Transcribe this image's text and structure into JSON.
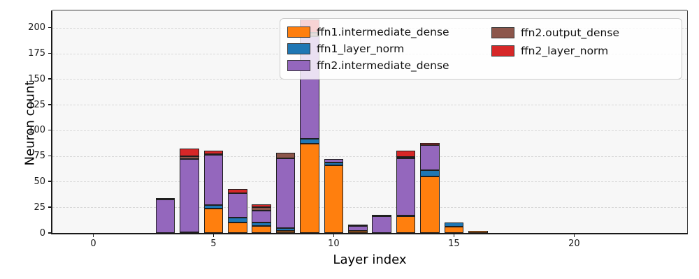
{
  "chart_data": {
    "type": "bar",
    "stacked": true,
    "title": "",
    "xlabel": "Layer index",
    "ylabel": "Neuron count",
    "xlim": [
      -1.7,
      24.7
    ],
    "ylim": [
      0,
      217
    ],
    "xticks": [
      0,
      5,
      10,
      15,
      20
    ],
    "yticks": [
      0,
      25,
      50,
      75,
      100,
      125,
      150,
      175,
      200
    ],
    "grid": "horizontal dashed, axis below bars",
    "plot_background": "#f7f7f7",
    "bar_relative_width": 0.8,
    "bar_edge_color": "#1f1f1f",
    "categories": [
      0,
      1,
      2,
      3,
      4,
      5,
      6,
      7,
      8,
      9,
      10,
      11,
      12,
      13,
      14,
      15,
      16,
      17,
      18,
      19,
      20,
      21,
      22,
      23
    ],
    "series": [
      {
        "name": "ffn1.intermediate_dense",
        "color": "#ff7f0e",
        "values": [
          0,
          0,
          0,
          0,
          1,
          24,
          10,
          7,
          2,
          87,
          66,
          2,
          0,
          16,
          55,
          6,
          2,
          0,
          0,
          0,
          0,
          0,
          0,
          0
        ]
      },
      {
        "name": "ffn1_layer_norm",
        "color": "#1f77b4",
        "values": [
          0,
          0,
          0,
          0,
          0,
          3,
          5,
          3,
          3,
          5,
          3,
          0,
          0,
          1,
          6,
          4,
          0,
          0,
          0,
          0,
          0,
          0,
          0,
          0
        ]
      },
      {
        "name": "ffn2.intermediate_dense",
        "color": "#9467bd",
        "values": [
          0,
          0,
          0,
          33,
          71,
          49,
          24,
          12,
          68,
          100,
          3,
          5,
          16,
          56,
          25,
          0,
          0,
          0,
          0,
          0,
          0,
          0,
          0,
          0
        ]
      },
      {
        "name": "ffn2.output_dense",
        "color": "#8c564b",
        "values": [
          0,
          0,
          0,
          1,
          3,
          1,
          0,
          3,
          5,
          3,
          0,
          1,
          0,
          1,
          0,
          0,
          0,
          0,
          0,
          0,
          0,
          0,
          0,
          0
        ]
      },
      {
        "name": "ffn2_layer_norm",
        "color": "#d62728",
        "values": [
          0,
          0,
          0,
          0,
          7,
          3,
          4,
          3,
          0,
          13,
          0,
          0,
          2,
          6,
          2,
          0,
          0,
          0,
          0,
          0,
          0,
          0,
          0,
          0
        ]
      }
    ],
    "legend": {
      "position": "upper right",
      "columns": [
        [
          "ffn1.intermediate_dense",
          "ffn1_layer_norm",
          "ffn2.intermediate_dense"
        ],
        [
          "ffn2.output_dense",
          "ffn2_layer_norm"
        ]
      ]
    }
  }
}
